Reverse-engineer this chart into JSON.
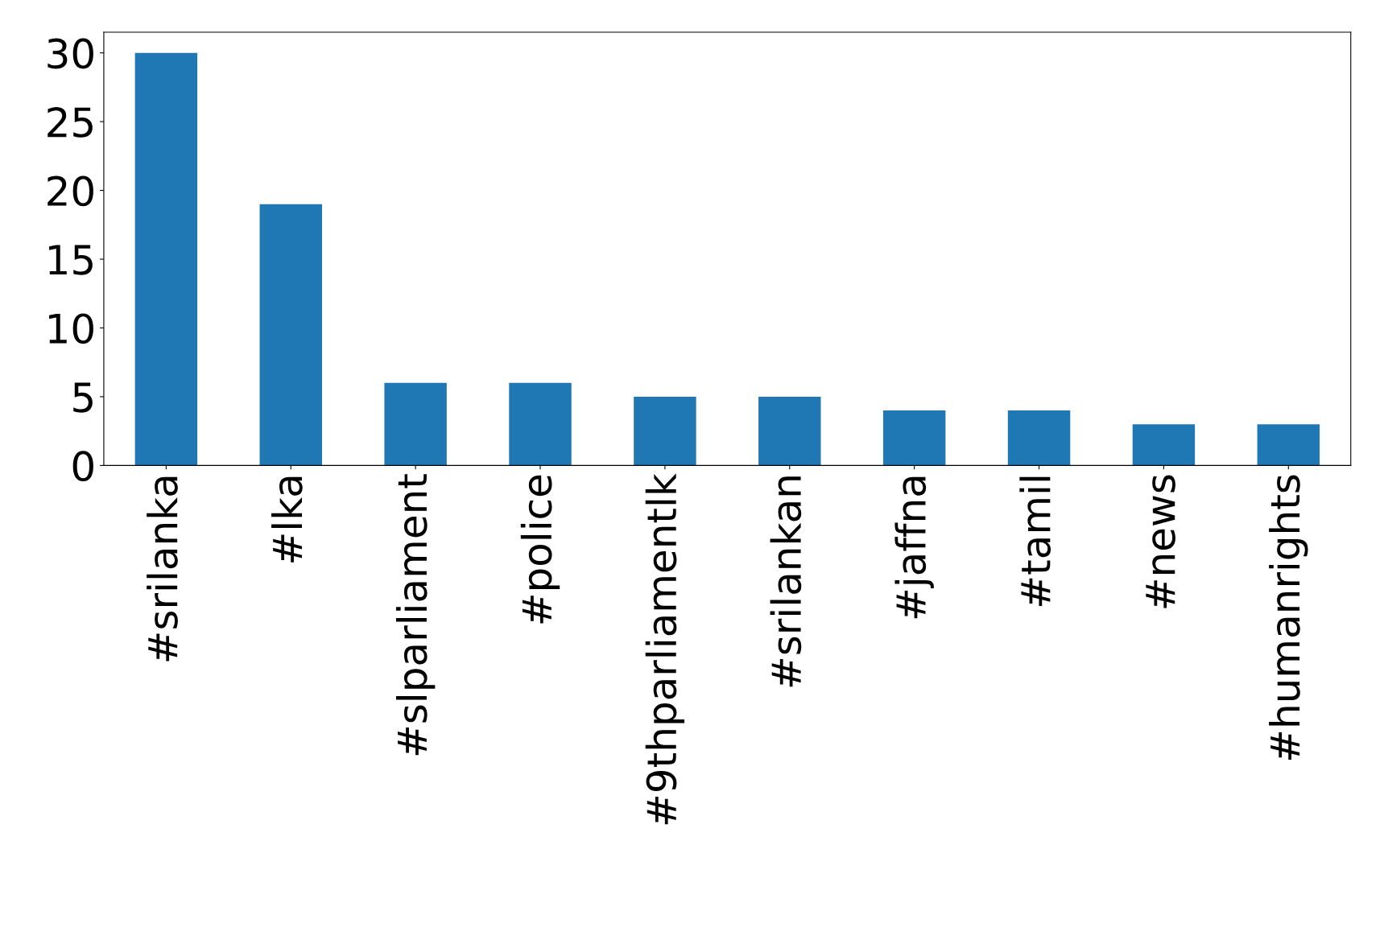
{
  "chart_data": {
    "type": "bar",
    "categories": [
      "#srilanka",
      "#lka",
      "#slparliament",
      "#police",
      "#9thparliamentlk",
      "#srilankan",
      "#jaffna",
      "#tamil",
      "#news",
      "#humanrights"
    ],
    "values": [
      30,
      19,
      6,
      6,
      5,
      5,
      4,
      4,
      3,
      3
    ],
    "color": "#1f77b4",
    "ylim": [
      0,
      31.5
    ],
    "yticks": [
      0,
      5,
      10,
      15,
      20,
      25,
      30
    ],
    "grid": false,
    "legend": false
  }
}
